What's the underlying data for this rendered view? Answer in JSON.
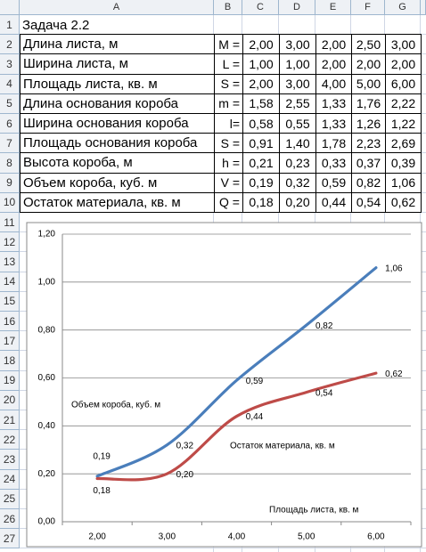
{
  "spreadsheet": {
    "columns": [
      "A",
      "B",
      "C",
      "D",
      "E",
      "F",
      "G"
    ],
    "row_numbers": [
      1,
      2,
      3,
      4,
      5,
      6,
      7,
      8,
      9,
      10,
      11,
      12,
      13,
      14,
      15,
      16,
      17,
      18,
      19,
      20,
      21,
      22,
      23,
      24,
      25,
      26,
      27
    ],
    "rows": [
      [
        "Задача 2.2"
      ],
      [
        "Длина листа, м",
        "M =",
        "2,00",
        "3,00",
        "2,00",
        "2,50",
        "3,00"
      ],
      [
        "Ширина листа, м",
        "L =",
        "1,00",
        "1,00",
        "2,00",
        "2,00",
        "2,00"
      ],
      [
        "Площадь листа, кв. м",
        "S =",
        "2,00",
        "3,00",
        "4,00",
        "5,00",
        "6,00"
      ],
      [
        "Длина основания короба",
        "m =",
        "1,58",
        "2,55",
        "1,33",
        "1,76",
        "2,22"
      ],
      [
        "Ширина основания короба",
        "l=",
        "0,58",
        "0,55",
        "1,33",
        "1,26",
        "1,22"
      ],
      [
        "Площадь основания короба",
        "S =",
        "0,91",
        "1,40",
        "1,78",
        "2,23",
        "2,69"
      ],
      [
        "Высота короба, м",
        "h =",
        "0,21",
        "0,23",
        "0,33",
        "0,37",
        "0,39"
      ],
      [
        "Объем короба, куб. м",
        "V =",
        "0,19",
        "0,32",
        "0,59",
        "0,82",
        "1,06"
      ],
      [
        "Остаток материала, кв. м",
        "Q =",
        "0,18",
        "0,20",
        "0,44",
        "0,54",
        "0,62"
      ]
    ]
  },
  "chart_data": {
    "type": "line",
    "smooth": true,
    "x_label": "Площадь листа, кв. м",
    "categories": [
      "2,00",
      "3,00",
      "4,00",
      "5,00",
      "6,00"
    ],
    "series": [
      {
        "name": "Объем короба, куб. м",
        "color": "#4a7ebb",
        "values": [
          0.19,
          0.32,
          0.59,
          0.82,
          1.06
        ],
        "value_labels": [
          "0,19",
          "0,32",
          "0,59",
          "0,82",
          "1,06"
        ]
      },
      {
        "name": "Остаток материала, кв. м",
        "color": "#be4b48",
        "values": [
          0.18,
          0.2,
          0.44,
          0.54,
          0.62
        ],
        "value_labels": [
          "0,18",
          "0,20",
          "0,44",
          "0,54",
          "0,62"
        ]
      }
    ],
    "ylim": [
      0,
      1.2
    ],
    "yticks": [
      {
        "value": 0,
        "label": "0,00"
      },
      {
        "value": 0.2,
        "label": "0,20"
      },
      {
        "value": 0.4,
        "label": "0,40"
      },
      {
        "value": 0.6,
        "label": "0,60"
      },
      {
        "value": 0.8,
        "label": "0,80"
      },
      {
        "value": 1.0,
        "label": "1,00"
      },
      {
        "value": 1.2,
        "label": "1,20"
      }
    ],
    "grid": true
  }
}
